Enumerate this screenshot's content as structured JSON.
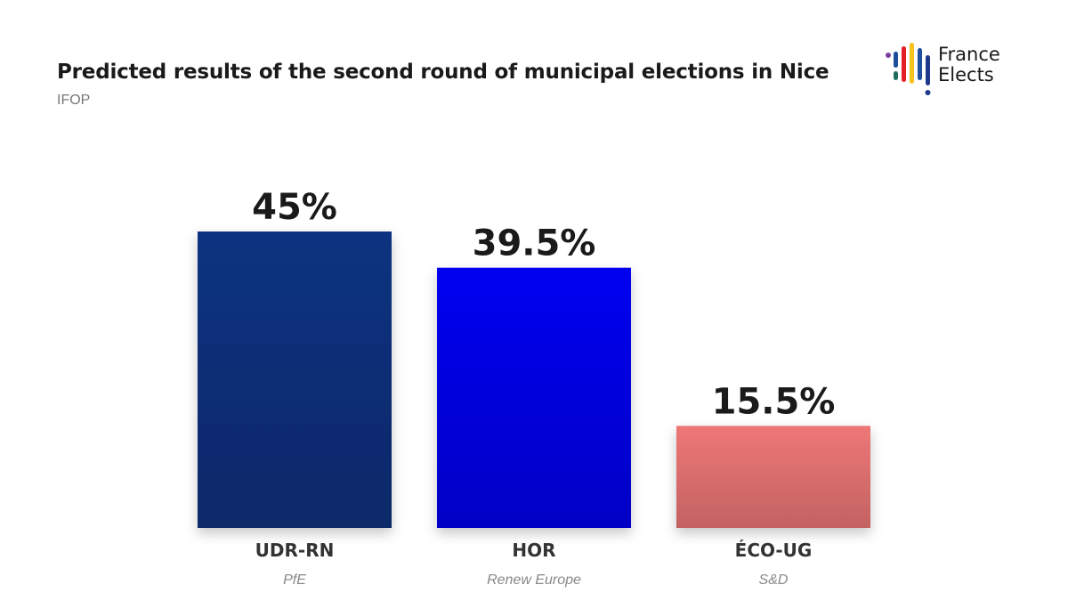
{
  "header": {
    "title": "Predicted results of the second round of municipal elections in Nice",
    "subtitle": "IFOP"
  },
  "logo": {
    "line1": "France",
    "line2": "Elects"
  },
  "chart_data": {
    "type": "bar",
    "title": "Predicted results of the second round of municipal elections in Nice",
    "subtitle": "IFOP",
    "categories": [
      "UDR-RN",
      "HOR",
      "ÉCO-UG"
    ],
    "groups": [
      "PfE",
      "Renew Europe",
      "S&D"
    ],
    "values": [
      45,
      39.5,
      15.5
    ],
    "value_labels": [
      "45%",
      "39.5%",
      "15.5%"
    ],
    "colors": [
      "#0d3280",
      "#0000f0",
      "#ee7777"
    ],
    "ylim": [
      0,
      45
    ],
    "xlabel": "",
    "ylabel": "",
    "grid": false,
    "legend": "none"
  }
}
